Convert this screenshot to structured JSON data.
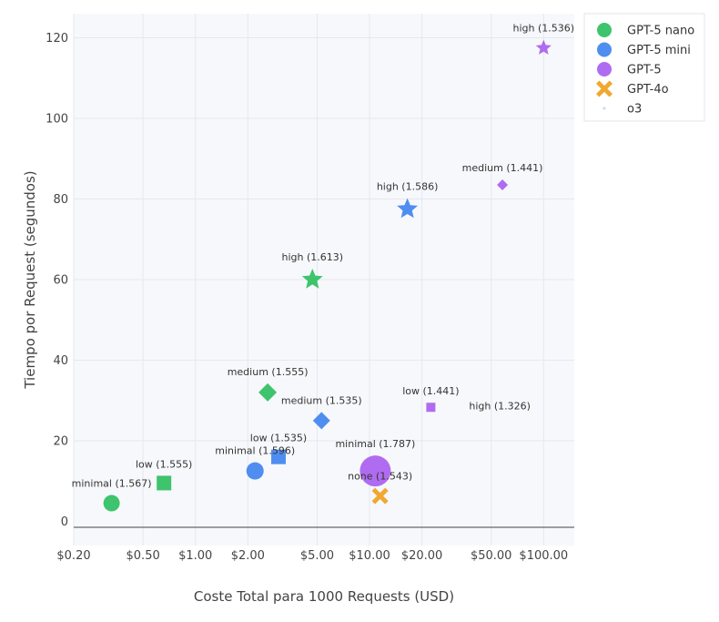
{
  "chart_data": {
    "type": "scatter",
    "xlabel": "Coste Total para 1000 Requests (USD)",
    "ylabel": "Tiempo por Request (segundos)",
    "x_scale": "log",
    "x_ticks": [
      0.2,
      0.5,
      1,
      2,
      5,
      10,
      20,
      50,
      100
    ],
    "x_tick_labels": [
      "$0.20",
      "$0.50",
      "$1.00",
      "$2.00",
      "$5.00",
      "$10.00",
      "$20.00",
      "$50.00",
      "$100.00"
    ],
    "xlim": [
      0.2,
      150
    ],
    "y_ticks": [
      0,
      20,
      40,
      60,
      80,
      100,
      120
    ],
    "y_tick_labels": [
      "0",
      "20",
      "40",
      "60",
      "80",
      "100",
      "120"
    ],
    "ylim": [
      -6,
      126
    ],
    "grid": true,
    "legend_position": "top-right-outside",
    "series": [
      {
        "name": "GPT-5 nano",
        "color": "#3ec46d",
        "points": [
          {
            "x": 0.33,
            "y": 4.5,
            "label": "minimal (1.567)",
            "symbol": "circle"
          },
          {
            "x": 0.66,
            "y": 9.5,
            "label": "low (1.555)",
            "symbol": "square"
          },
          {
            "x": 2.6,
            "y": 32,
            "label": "medium (1.555)",
            "symbol": "diamond"
          },
          {
            "x": 4.7,
            "y": 60,
            "label": "high (1.613)",
            "symbol": "star"
          }
        ]
      },
      {
        "name": "GPT-5 mini",
        "color": "#4f8ef0",
        "points": [
          {
            "x": 2.2,
            "y": 12.5,
            "label": "minimal (1.596)",
            "symbol": "circle"
          },
          {
            "x": 3.0,
            "y": 16,
            "label": "low (1.535)",
            "symbol": "square"
          },
          {
            "x": 5.3,
            "y": 25,
            "label": "medium (1.535)",
            "symbol": "diamond"
          },
          {
            "x": 16.5,
            "y": 77.5,
            "label": "high (1.586)",
            "symbol": "star"
          }
        ]
      },
      {
        "name": "GPT-5",
        "color": "#b06cf0",
        "points": [
          {
            "x": 10.8,
            "y": 12.5,
            "label": "minimal (1.787)",
            "symbol": "circle"
          },
          {
            "x": 22.5,
            "y": 28.3,
            "label": "low (1.441)",
            "symbol": "square"
          },
          {
            "x": 58,
            "y": 83.5,
            "label": "medium (1.441)",
            "symbol": "diamond"
          },
          {
            "x": 100,
            "y": 117.5,
            "label": "high (1.536)",
            "symbol": "star"
          }
        ]
      },
      {
        "name": "GPT-4o",
        "color": "#f0a830",
        "points": [
          {
            "x": 11.5,
            "y": 6.3,
            "label": "none (1.543)",
            "symbol": "x"
          }
        ]
      },
      {
        "name": "o3",
        "color": "#c8d8ee",
        "points": [
          {
            "x": 56,
            "y": 25.5,
            "label": "high (1.326)",
            "symbol": "none"
          }
        ]
      }
    ]
  }
}
